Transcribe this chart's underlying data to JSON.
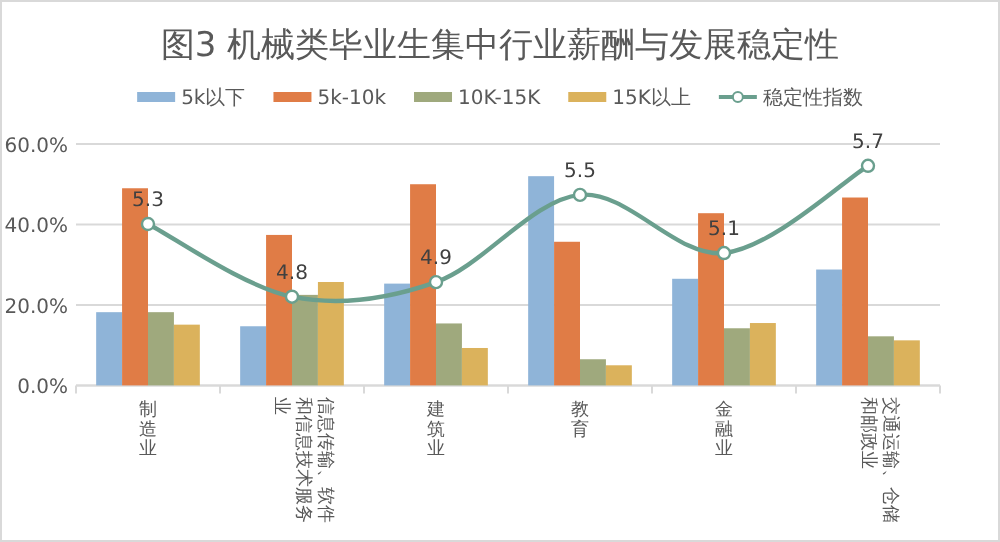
{
  "chart_data": {
    "type": "bar",
    "title": "图3 机械类毕业生集中行业薪酬与发展稳定性",
    "categories": [
      "制造业",
      "信息传输、软件和信息技术服务业",
      "建筑业",
      "教育",
      "金融业",
      "交通运输、仓储和邮政业"
    ],
    "series": [
      {
        "name": "5k以下",
        "color": "#8fb4d8",
        "values": [
          18.2,
          14.7,
          25.3,
          52.0,
          26.5,
          28.8
        ]
      },
      {
        "name": "5k-10k",
        "color": "#e07c46",
        "values": [
          49.0,
          37.4,
          50.0,
          35.7,
          42.8,
          46.7
        ]
      },
      {
        "name": "10K-15K",
        "color": "#9fa97d",
        "values": [
          18.2,
          22.5,
          15.4,
          6.5,
          14.2,
          12.2
        ]
      },
      {
        "name": "15K以上",
        "color": "#dbb25c",
        "values": [
          15.1,
          25.7,
          9.3,
          5.0,
          15.5,
          11.2
        ]
      },
      {
        "name": "稳定性指数",
        "type": "line",
        "axis": "y2",
        "color": "#6a9f8e",
        "marker": "circle",
        "values": [
          5.3,
          4.8,
          4.9,
          5.5,
          5.1,
          5.7
        ],
        "value_labels": [
          "5.3",
          "4.8",
          "4.9",
          "5.5",
          "5.1",
          "5.7"
        ]
      }
    ],
    "ylim": [
      0,
      60
    ],
    "yticks": [
      {
        "value": 0,
        "label": "0.0%"
      },
      {
        "value": 20,
        "label": "20.0%"
      },
      {
        "value": 40,
        "label": "40.0%"
      },
      {
        "value": 60,
        "label": "60.0%"
      }
    ],
    "y2lim": [
      4.19,
      5.85
    ],
    "grid": "y",
    "legend": "top"
  }
}
